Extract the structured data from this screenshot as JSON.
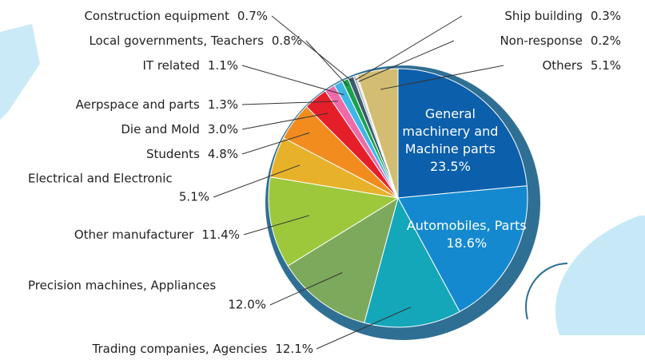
{
  "chart_data": {
    "type": "pie",
    "categories": [
      "General machinery and Machine parts",
      "Automobiles, Parts",
      "Trading companies, Agencies",
      "Precision machines, Appliances",
      "Other manufacturer",
      "Electrical and Electronic",
      "Students",
      "Die and Mold",
      "Aerpspace and parts",
      "IT related",
      "Local governments, Teachers",
      "Construction equipment",
      "Ship building",
      "Non-response",
      "Others"
    ],
    "values": [
      23.5,
      18.6,
      12.1,
      12.0,
      11.4,
      5.1,
      4.8,
      3.0,
      1.3,
      1.1,
      0.8,
      0.7,
      0.3,
      0.2,
      5.1
    ],
    "value_labels": [
      "23.5%",
      "18.6%",
      "12.1%",
      "12.0%",
      "11.4%",
      "5.1%",
      "4.8%",
      "3.0%",
      "1.3%",
      "1.1%",
      "0.8%",
      "0.7%",
      "0.3%",
      "0.2%",
      "5.1%"
    ],
    "colors": [
      "#0b5fab",
      "#1489d0",
      "#13a7b9",
      "#7da95c",
      "#9dc83c",
      "#e8b12a",
      "#f28c1f",
      "#e51f2a",
      "#ee6aa8",
      "#3fb6e6",
      "#1aa34a",
      "#3a5c6e",
      "#b0b0b0",
      "#d8d8d8",
      "#d2bd72"
    ]
  }
}
